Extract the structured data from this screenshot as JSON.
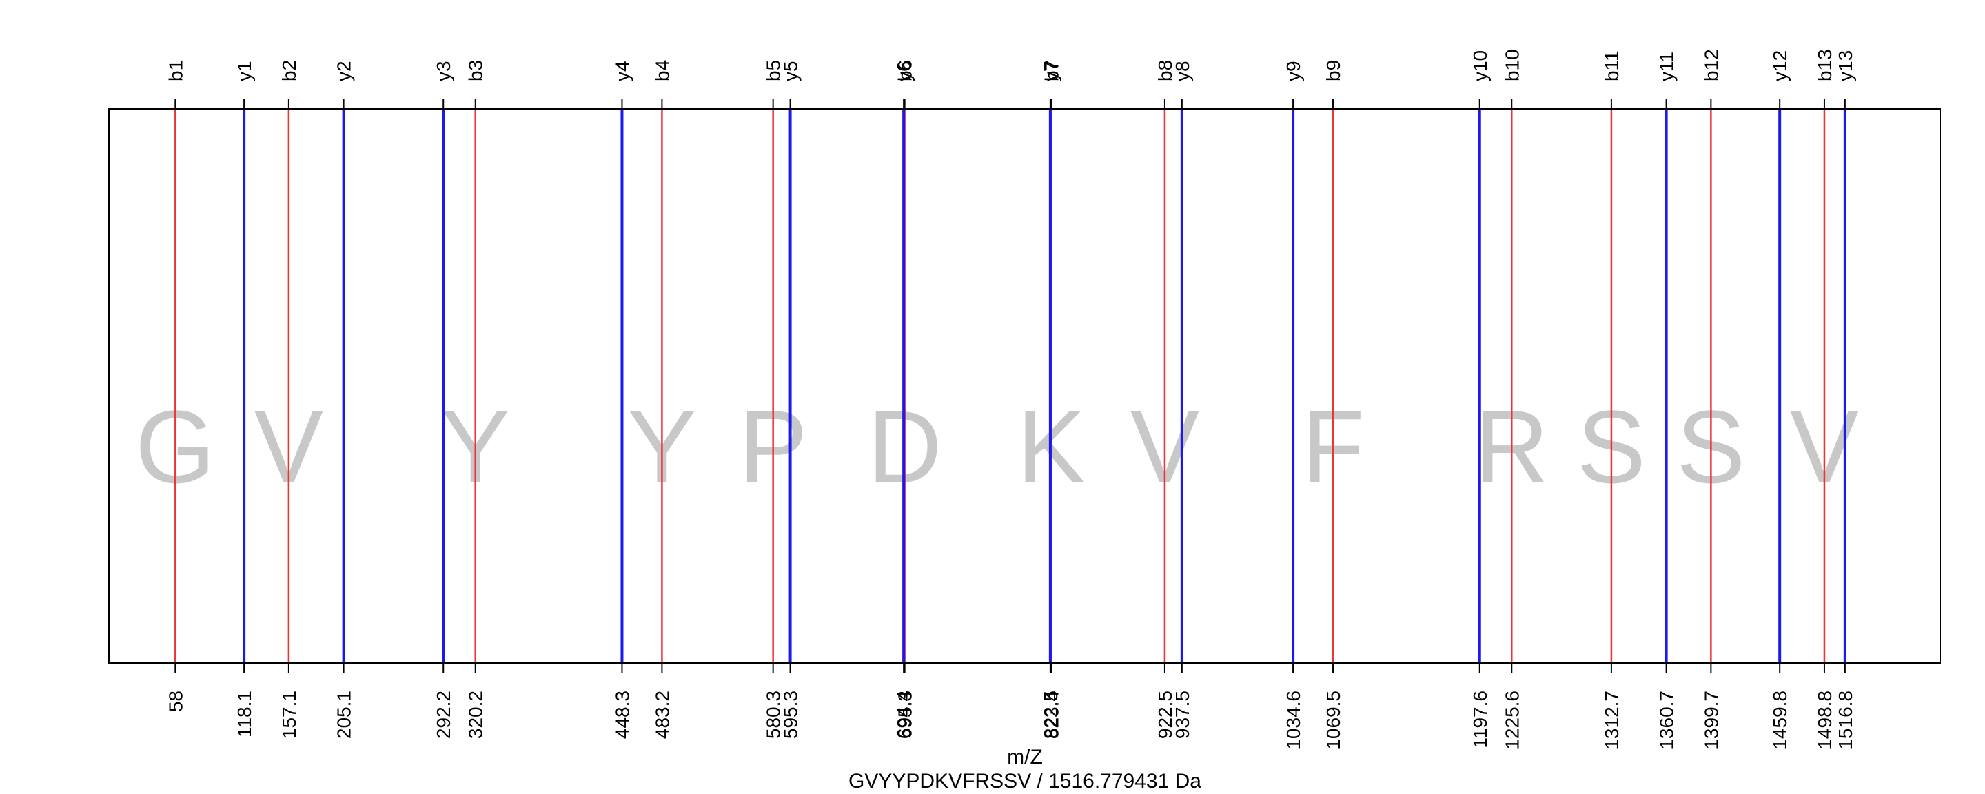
{
  "chart_data": {
    "type": "spectrum",
    "xlabel": "m/Z",
    "subtitle": "GVYYPDKVFRSSV / 1516.779431 Da",
    "xlim": [
      0,
      1600
    ],
    "residues": [
      {
        "letter": "G",
        "x": 58
      },
      {
        "letter": "V",
        "x": 157.1
      },
      {
        "letter": "Y",
        "x": 320.2
      },
      {
        "letter": "Y",
        "x": 483.2
      },
      {
        "letter": "P",
        "x": 580.3
      },
      {
        "letter": "D",
        "x": 695.3
      },
      {
        "letter": "K",
        "x": 823.4
      },
      {
        "letter": "V",
        "x": 922.5
      },
      {
        "letter": "F",
        "x": 1069.5
      },
      {
        "letter": "R",
        "x": 1225.6
      },
      {
        "letter": "S",
        "x": 1312.7
      },
      {
        "letter": "S",
        "x": 1399.7
      },
      {
        "letter": "V",
        "x": 1498.8
      }
    ],
    "series": [
      {
        "color": "#ee3333",
        "ions": [
          {
            "label": "b1",
            "mz": 58,
            "mz_text": "58"
          },
          {
            "label": "b2",
            "mz": 157.1,
            "mz_text": "157.1"
          },
          {
            "label": "b3",
            "mz": 320.2,
            "mz_text": "320.2"
          },
          {
            "label": "b4",
            "mz": 483.2,
            "mz_text": "483.2"
          },
          {
            "label": "b5",
            "mz": 580.3,
            "mz_text": "580.3"
          },
          {
            "label": "b6",
            "mz": 695.3,
            "mz_text": "695.3"
          },
          {
            "label": "b7",
            "mz": 823.4,
            "mz_text": "823.4"
          },
          {
            "label": "b8",
            "mz": 922.5,
            "mz_text": "922.5"
          },
          {
            "label": "b9",
            "mz": 1069.5,
            "mz_text": "1069.5"
          },
          {
            "label": "b10",
            "mz": 1225.6,
            "mz_text": "1225.6"
          },
          {
            "label": "b11",
            "mz": 1312.7,
            "mz_text": "1312.7"
          },
          {
            "label": "b12",
            "mz": 1399.7,
            "mz_text": "1399.7"
          },
          {
            "label": "b13",
            "mz": 1498.8,
            "mz_text": "1498.8"
          }
        ]
      },
      {
        "color": "#1a1aee",
        "ions": [
          {
            "label": "y1",
            "mz": 118.1,
            "mz_text": "118.1"
          },
          {
            "label": "y2",
            "mz": 205.1,
            "mz_text": "205.1"
          },
          {
            "label": "y3",
            "mz": 292.2,
            "mz_text": "292.2"
          },
          {
            "label": "y4",
            "mz": 448.3,
            "mz_text": "448.3"
          },
          {
            "label": "y5",
            "mz": 595.3,
            "mz_text": "595.3"
          },
          {
            "label": "y6",
            "mz": 694.4,
            "mz_text": "694.4"
          },
          {
            "label": "y7",
            "mz": 822.5,
            "mz_text": "822.5"
          },
          {
            "label": "y8",
            "mz": 937.5,
            "mz_text": "937.5"
          },
          {
            "label": "y9",
            "mz": 1034.6,
            "mz_text": "1034.6"
          },
          {
            "label": "y10",
            "mz": 1197.6,
            "mz_text": "1197.6"
          },
          {
            "label": "y11",
            "mz": 1360.7,
            "mz_text": "1360.7"
          },
          {
            "label": "y12",
            "mz": 1459.8,
            "mz_text": "1459.8"
          },
          {
            "label": "y13",
            "mz": 1516.8,
            "mz_text": "1516.8"
          }
        ]
      }
    ]
  }
}
